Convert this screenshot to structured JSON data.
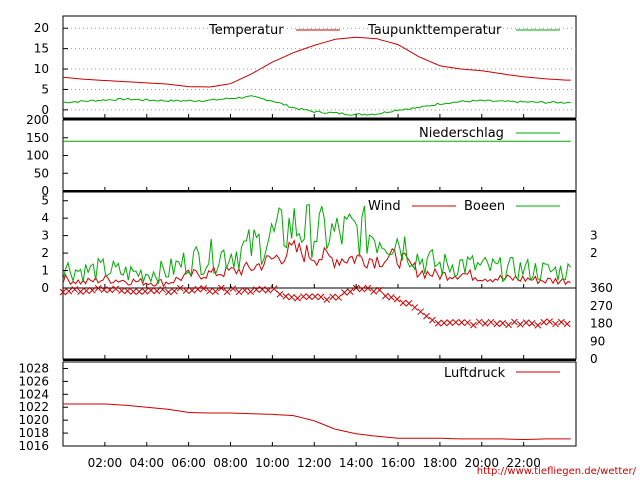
{
  "chart_data": [
    {
      "type": "line",
      "panel": "temperature",
      "x_unit": "hour",
      "ylim": [
        -2,
        23
      ],
      "yticks": [
        "0",
        "5",
        "10",
        "15",
        "20"
      ],
      "grid": "dotted-horizontal",
      "legend_position": "top-right",
      "series": [
        {
          "name": "Temperatur",
          "color": "#cc0000",
          "x": [
            0,
            1,
            2,
            3,
            4,
            5,
            6,
            7,
            8,
            9,
            10,
            11,
            12,
            13,
            14,
            15,
            16,
            17,
            18,
            19,
            20,
            21,
            22,
            23,
            24
          ],
          "values": [
            8,
            7.5,
            7.2,
            6.9,
            6.6,
            6.3,
            5.7,
            5.6,
            6.4,
            8.8,
            11.7,
            14,
            15.8,
            17.3,
            17.8,
            17.4,
            16,
            13,
            10.8,
            10,
            9.6,
            8.8,
            8.1,
            7.6,
            7.3
          ]
        },
        {
          "name": "Taupunkttemperatur",
          "color": "#00aa00",
          "x": [
            0,
            1,
            2,
            3,
            4,
            5,
            6,
            7,
            8,
            9,
            10,
            11,
            12,
            13,
            14,
            15,
            16,
            17,
            18,
            19,
            20,
            21,
            22,
            23,
            24
          ],
          "values": [
            1.8,
            2.1,
            2.4,
            2.6,
            2.4,
            2.2,
            2.2,
            2.3,
            2.8,
            3.2,
            2.2,
            0.5,
            -0.5,
            -0.8,
            -1.2,
            -1,
            0,
            0.5,
            1.5,
            2,
            2.2,
            2,
            1.9,
            1.8,
            1.8
          ]
        }
      ]
    },
    {
      "type": "line",
      "panel": "precipitation",
      "ylim": [
        0,
        200
      ],
      "yticks": [
        "0",
        "50",
        "100",
        "150",
        "200"
      ],
      "series": [
        {
          "name": "Niederschlag",
          "color": "#00aa00",
          "x": [
            0,
            6,
            12,
            18,
            24
          ],
          "values": [
            140,
            140,
            140,
            140,
            140
          ]
        }
      ]
    },
    {
      "type": "line",
      "panel": "wind",
      "ylim": [
        0,
        5.5
      ],
      "yticks": [
        "0",
        "1",
        "2",
        "3",
        "4",
        "5"
      ],
      "right_ticks": [
        "2",
        "3"
      ],
      "legend_position": "top-right",
      "series": [
        {
          "name": "Wind",
          "color": "#cc0000",
          "x": [
            0,
            1,
            2,
            3,
            4,
            5,
            6,
            7,
            8,
            9,
            10,
            11,
            12,
            13,
            14,
            15,
            16,
            17,
            18,
            19,
            20,
            21,
            22,
            23,
            24
          ],
          "values": [
            0.5,
            0.3,
            0.5,
            0.4,
            0.3,
            0.3,
            0.7,
            0.8,
            0.9,
            1.1,
            1.6,
            2.1,
            1.8,
            1.6,
            1.7,
            1.6,
            1.7,
            0.9,
            0.7,
            0.8,
            0.6,
            0.5,
            0.5,
            0.4,
            0.4
          ]
        },
        {
          "name": "Boeen",
          "color": "#00aa00",
          "x": [
            0,
            1,
            2,
            3,
            4,
            5,
            6,
            7,
            8,
            9,
            10,
            11,
            12,
            13,
            14,
            15,
            16,
            17,
            18,
            19,
            20,
            21,
            22,
            23,
            24
          ],
          "values": [
            1.1,
            0.9,
            1,
            0.8,
            0.8,
            0.9,
            1.5,
            1.7,
            1.9,
            2.2,
            2.8,
            3.4,
            3.1,
            2.9,
            3.1,
            2.9,
            2.7,
            1.6,
            1.2,
            1.3,
            1.1,
            1,
            1,
            0.9,
            0.9
          ]
        }
      ]
    },
    {
      "type": "scatter",
      "panel": "wind-direction",
      "ylim": [
        0,
        360
      ],
      "right_ticks": [
        "0",
        "90",
        "180",
        "270",
        "360"
      ],
      "series": [
        {
          "name": "",
          "color": "#cc0000",
          "x": [
            0,
            1,
            2,
            3,
            4,
            5,
            6,
            7,
            8,
            9,
            10,
            11,
            12,
            13,
            14,
            15,
            16,
            17,
            18,
            19,
            20,
            21,
            22,
            23,
            24
          ],
          "values": [
            350,
            350,
            350,
            350,
            350,
            350,
            350,
            350,
            350,
            350,
            350,
            310,
            310,
            310,
            350,
            350,
            300,
            250,
            180,
            180,
            180,
            180,
            180,
            180,
            180
          ]
        }
      ]
    },
    {
      "type": "line",
      "panel": "pressure",
      "ylim": [
        1016,
        1029
      ],
      "yticks": [
        "1016",
        "1018",
        "1020",
        "1022",
        "1024",
        "1026",
        "1028"
      ],
      "legend_position": "top-right",
      "series": [
        {
          "name": "Luftdruck",
          "color": "#cc0000",
          "x": [
            0,
            1,
            2,
            3,
            4,
            5,
            6,
            7,
            8,
            9,
            10,
            11,
            12,
            13,
            14,
            15,
            16,
            17,
            18,
            19,
            20,
            21,
            22,
            23,
            24
          ],
          "values": [
            1022.5,
            1022.5,
            1022.5,
            1022.3,
            1022,
            1021.7,
            1021.2,
            1021.1,
            1021.1,
            1021,
            1020.9,
            1020.7,
            1019.9,
            1018.6,
            1017.9,
            1017.5,
            1017.2,
            1017.2,
            1017.2,
            1017.1,
            1017.1,
            1017.1,
            1017,
            1017.1,
            1017.1
          ]
        }
      ]
    }
  ],
  "x_ticks": [
    {
      "hour": 2,
      "label": "02:00"
    },
    {
      "hour": 4,
      "label": "04:00"
    },
    {
      "hour": 6,
      "label": "06:00"
    },
    {
      "hour": 8,
      "label": "08:00"
    },
    {
      "hour": 10,
      "label": "10:00"
    },
    {
      "hour": 12,
      "label": "12:00"
    },
    {
      "hour": 14,
      "label": "14:00"
    },
    {
      "hour": 16,
      "label": "16:00"
    },
    {
      "hour": 18,
      "label": "18:00"
    },
    {
      "hour": 20,
      "label": "20:00"
    },
    {
      "hour": 22,
      "label": "22:00"
    }
  ],
  "footer_url": "http://www.tiefliegen.de/wetter/"
}
